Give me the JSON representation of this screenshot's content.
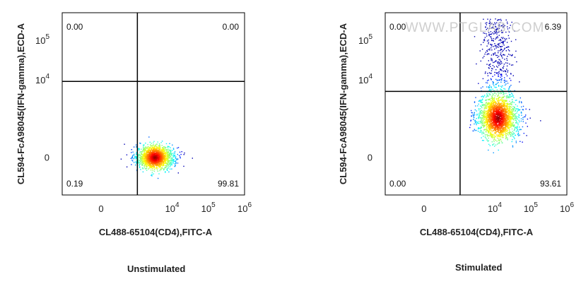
{
  "figure_name": "",
  "watermark": "WWW.PTGLAB.COM",
  "chart_data": [
    {
      "type": "scatter",
      "subtype": "flow-cytometry-density-dot-plot",
      "title": "Unstimulated",
      "xlabel": "CL488-65104(CD4),FITC-A",
      "ylabel": "CL594-FcA98045(IFN-gamma),ECD-A",
      "x_ticks": [
        {
          "label": "0",
          "value": 0
        },
        {
          "label": "10",
          "exp": "4",
          "value": 10000
        },
        {
          "label": "10",
          "exp": "5",
          "value": 100000
        },
        {
          "label": "10",
          "exp": "6",
          "value": 1000000
        }
      ],
      "y_ticks": [
        {
          "label": "0",
          "value": 0
        },
        {
          "label": "10",
          "exp": "4",
          "value": 10000
        },
        {
          "label": "10",
          "exp": "5",
          "value": 100000
        }
      ],
      "x_scale": "biexponential",
      "y_scale": "biexponential",
      "gate": {
        "x": 1000,
        "y": 9000
      },
      "quadrants": {
        "upper_left": "0.00",
        "upper_right": "0.00",
        "lower_left": "0.19",
        "lower_right": "99.81"
      },
      "population": {
        "center_x": 3200,
        "center_y": 0,
        "points": 1800,
        "spread_x": 0.11,
        "spread_y": 0.045,
        "tail_upper": 0
      },
      "colorscale": "jet",
      "grid": false,
      "legend": "none"
    },
    {
      "type": "scatter",
      "subtype": "flow-cytometry-density-dot-plot",
      "title": "Stimulated",
      "xlabel": "CL488-65104(CD4),FITC-A",
      "ylabel": "CL594-FcA98045(IFN-gamma),ECD-A",
      "x_ticks": [
        {
          "label": "0",
          "value": 0
        },
        {
          "label": "10",
          "exp": "4",
          "value": 10000
        },
        {
          "label": "10",
          "exp": "5",
          "value": 100000
        },
        {
          "label": "10",
          "exp": "6",
          "value": 1000000
        }
      ],
      "y_ticks": [
        {
          "label": "0",
          "value": 0
        },
        {
          "label": "10",
          "exp": "4",
          "value": 10000
        },
        {
          "label": "10",
          "exp": "5",
          "value": 100000
        }
      ],
      "x_scale": "biexponential",
      "y_scale": "biexponential",
      "gate": {
        "x": 1000,
        "y": 5000
      },
      "quadrants": {
        "upper_left": "0.00",
        "upper_right": "6.39",
        "lower_left": "0.00",
        "lower_right": "93.61"
      },
      "population": {
        "center_x": 12000,
        "center_y": 1000,
        "points": 2200,
        "spread_x": 0.12,
        "spread_y": 0.08,
        "tail_upper": 500
      },
      "colorscale": "jet",
      "grid": false,
      "legend": "none"
    }
  ]
}
